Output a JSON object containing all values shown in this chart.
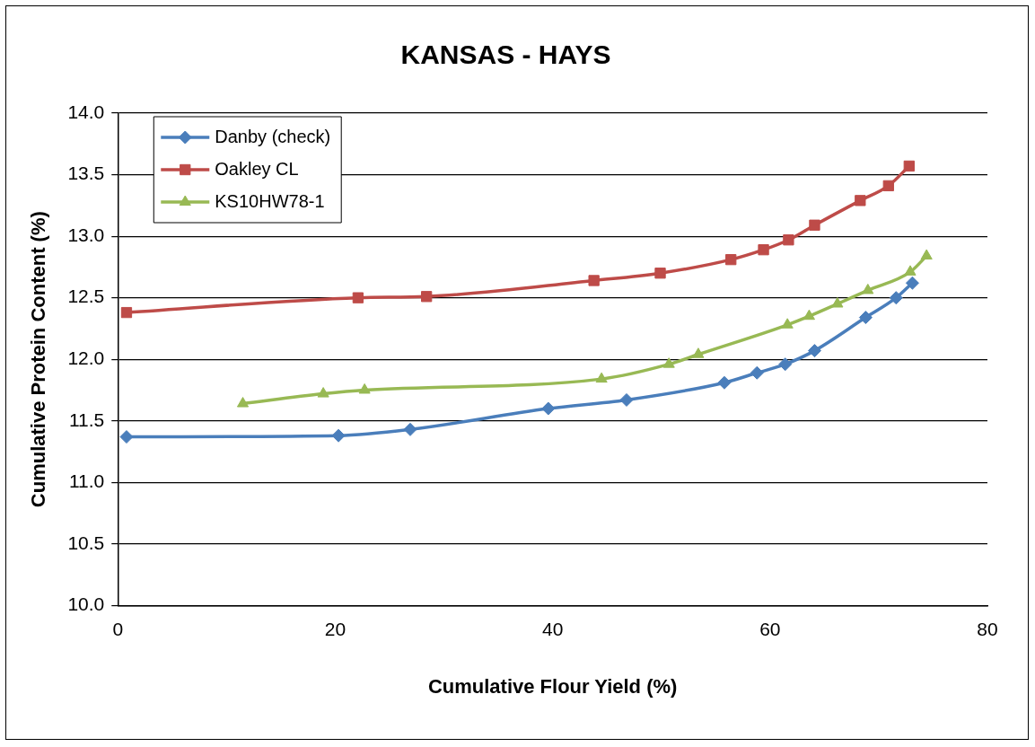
{
  "chart_data": {
    "type": "line",
    "title": "KANSAS - HAYS",
    "xlabel": "Cumulative Flour Yield (%)",
    "ylabel": "Cumulative Protein Content (%)",
    "xlim": [
      0,
      80
    ],
    "xticks": [
      0,
      20,
      40,
      60,
      80
    ],
    "ylim": [
      10,
      14
    ],
    "yticks": [
      {
        "value": 10,
        "label": "10.0"
      },
      {
        "value": 10.5,
        "label": "10.5"
      },
      {
        "value": 11,
        "label": "11.0"
      },
      {
        "value": 11.5,
        "label": "11.5"
      },
      {
        "value": 12,
        "label": "12.0"
      },
      {
        "value": 12.5,
        "label": "12.5"
      },
      {
        "value": 13,
        "label": "13.0"
      },
      {
        "value": 13.5,
        "label": "13.5"
      },
      {
        "value": 14,
        "label": "14.0"
      }
    ],
    "grid": "y",
    "legend": "top left",
    "series": [
      {
        "name": "Danby (check)",
        "color": "#4a7ebb",
        "marker": "diamond",
        "x": [
          0.8,
          20.3,
          26.9,
          39.6,
          46.8,
          55.8,
          58.8,
          61.4,
          64.1,
          68.8,
          71.6,
          73.1
        ],
        "values": [
          11.37,
          11.38,
          11.43,
          11.6,
          11.67,
          11.81,
          11.89,
          11.96,
          12.07,
          12.34,
          12.5,
          12.62
        ]
      },
      {
        "name": "Oakley CL",
        "color": "#be4b48",
        "marker": "square",
        "x": [
          0.8,
          22.1,
          28.4,
          43.8,
          49.9,
          56.4,
          59.4,
          61.7,
          64.1,
          68.3,
          70.9,
          72.8
        ],
        "values": [
          12.38,
          12.5,
          12.51,
          12.64,
          12.7,
          12.81,
          12.89,
          12.97,
          13.09,
          13.29,
          13.41,
          13.57
        ]
      },
      {
        "name": "KS10HW78-1",
        "color": "#98b954",
        "marker": "triangle",
        "x": [
          11.5,
          18.9,
          22.7,
          44.5,
          50.7,
          53.4,
          61.6,
          63.6,
          66.2,
          69.0,
          72.9,
          74.4
        ],
        "values": [
          11.64,
          11.72,
          11.75,
          11.84,
          11.96,
          12.04,
          12.28,
          12.35,
          12.45,
          12.56,
          12.71,
          12.84
        ]
      }
    ]
  }
}
